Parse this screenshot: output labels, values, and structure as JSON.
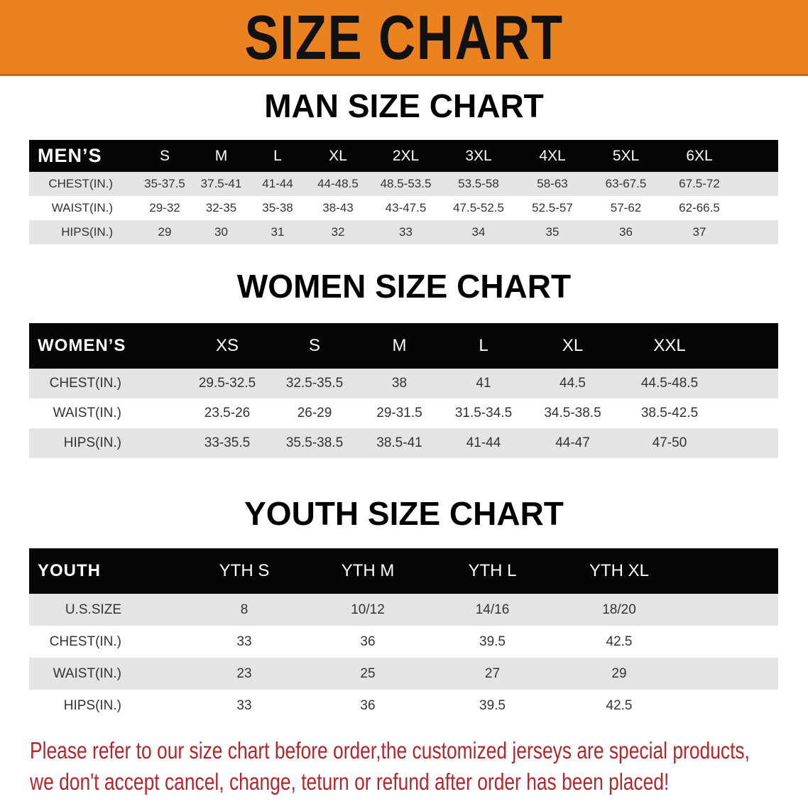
{
  "banner_title": "SIZE CHART",
  "men": {
    "title": "MAN SIZE CHART",
    "header": [
      "MEN’S",
      "S",
      "M",
      "L",
      "XL",
      "2XL",
      "3XL",
      "4XL",
      "5XL",
      "6XL"
    ],
    "rows": [
      [
        "CHEST(IN.)",
        "35-37.5",
        "37.5-41",
        "41-44",
        "44-48.5",
        "48.5-53.5",
        "53.5-58",
        "58-63",
        "63-67.5",
        "67.5-72"
      ],
      [
        "WAIST(IN.)",
        "29-32",
        "32-35",
        "35-38",
        "38-43",
        "43-47.5",
        "47.5-52.5",
        "52.5-57",
        "57-62",
        "62-66.5"
      ],
      [
        "HIPS(IN.)",
        "29",
        "30",
        "31",
        "32",
        "33",
        "34",
        "35",
        "36",
        "37"
      ]
    ]
  },
  "women": {
    "title": "WOMEN SIZE CHART",
    "header": [
      "WOMEN’S",
      "XS",
      "S",
      "M",
      "L",
      "XL",
      "XXL"
    ],
    "rows": [
      [
        "CHEST(IN.)",
        "29.5-32.5",
        "32.5-35.5",
        "38",
        "41",
        "44.5",
        "44.5-48.5"
      ],
      [
        "WAIST(IN.)",
        "23.5-26",
        "26-29",
        "29-31.5",
        "31.5-34.5",
        "34.5-38.5",
        "38.5-42.5"
      ],
      [
        "HIPS(IN.)",
        "33-35.5",
        "35.5-38.5",
        "38.5-41",
        "41-44",
        "44-47",
        "47-50"
      ]
    ]
  },
  "youth": {
    "title": "YOUTH SIZE CHART",
    "header": [
      "YOUTH",
      "YTH S",
      "YTH M",
      "YTH L",
      "YTH XL"
    ],
    "rows": [
      [
        "U.S.SIZE",
        "8",
        "10/12",
        "14/16",
        "18/20"
      ],
      [
        "CHEST(IN.)",
        "33",
        "36",
        "39.5",
        "42.5"
      ],
      [
        "WAIST(IN.)",
        "23",
        "25",
        "27",
        "29"
      ],
      [
        "HIPS(IN.)",
        "33",
        "36",
        "39.5",
        "42.5"
      ]
    ]
  },
  "notice": {
    "line1": "Please refer to our size chart before order,the customized jerseys are special products,",
    "line2": "we don't accept cancel, change, teturn or refund after order has been placed!"
  },
  "colors": {
    "banner": "#e9821f",
    "header": "#050505",
    "row_alt": "#e4e4e4",
    "notice": "#b3262b"
  }
}
